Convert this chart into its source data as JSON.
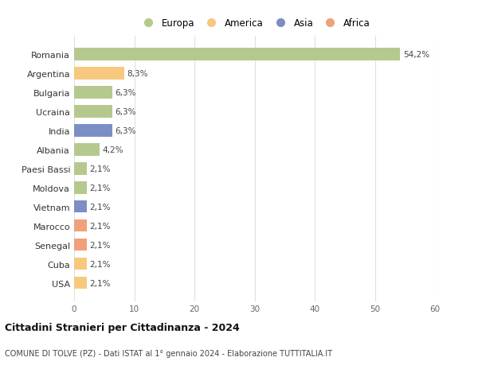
{
  "countries": [
    "Romania",
    "Argentina",
    "Bulgaria",
    "Ucraina",
    "India",
    "Albania",
    "Paesi Bassi",
    "Moldova",
    "Vietnam",
    "Marocco",
    "Senegal",
    "Cuba",
    "USA"
  ],
  "values": [
    54.2,
    8.3,
    6.3,
    6.3,
    6.3,
    4.2,
    2.1,
    2.1,
    2.1,
    2.1,
    2.1,
    2.1,
    2.1
  ],
  "labels": [
    "54,2%",
    "8,3%",
    "6,3%",
    "6,3%",
    "6,3%",
    "4,2%",
    "2,1%",
    "2,1%",
    "2,1%",
    "2,1%",
    "2,1%",
    "2,1%",
    "2,1%"
  ],
  "colors": [
    "#b5c98e",
    "#f6c97e",
    "#b5c98e",
    "#b5c98e",
    "#7b8fc4",
    "#b5c98e",
    "#b5c98e",
    "#b5c98e",
    "#7b8fc4",
    "#f0a07a",
    "#f0a07a",
    "#f6c97e",
    "#f6c97e"
  ],
  "legend_labels": [
    "Europa",
    "America",
    "Asia",
    "Africa"
  ],
  "legend_colors": [
    "#b5c98e",
    "#f6c97e",
    "#7b8fc4",
    "#f0a07a"
  ],
  "title": "Cittadini Stranieri per Cittadinanza - 2024",
  "subtitle": "COMUNE DI TOLVE (PZ) - Dati ISTAT al 1° gennaio 2024 - Elaborazione TUTTITALIA.IT",
  "xlim": [
    0,
    60
  ],
  "xticks": [
    0,
    10,
    20,
    30,
    40,
    50,
    60
  ],
  "bg_color": "#ffffff",
  "grid_color": "#e0e0e0",
  "bar_height": 0.65
}
